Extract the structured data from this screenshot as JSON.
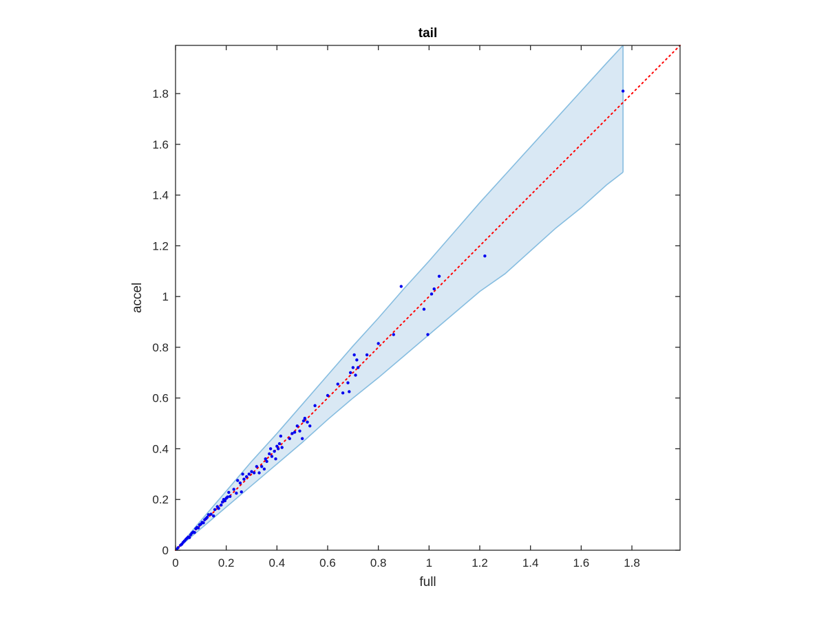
{
  "chart_data": {
    "type": "scatter",
    "title": "tail",
    "xlabel": "full",
    "ylabel": "accel",
    "xlim": [
      0,
      1.99
    ],
    "ylim": [
      0,
      1.99
    ],
    "grid": false,
    "x_ticks": [
      "0",
      "0.2",
      "0.4",
      "0.6",
      "0.8",
      "1",
      "1.2",
      "1.4",
      "1.6",
      "1.8"
    ],
    "y_ticks": [
      "0",
      "0.2",
      "0.4",
      "0.6",
      "0.8",
      "1",
      "1.2",
      "1.4",
      "1.6",
      "1.8"
    ],
    "colors": {
      "points": "#0000ee",
      "reference_line": "#ff0000",
      "band_fill": "#d9e8f4",
      "band_edge": "#86bde0",
      "axes": "#262626"
    },
    "band": {
      "x": [
        0,
        0.02,
        0.05,
        0.1,
        0.2,
        0.3,
        0.4,
        0.5,
        0.6,
        0.7,
        0.8,
        0.9,
        1.0,
        1.1,
        1.2,
        1.3,
        1.4,
        1.5,
        1.6,
        1.7,
        1.765
      ],
      "upper": [
        0,
        0.024,
        0.058,
        0.117,
        0.233,
        0.35,
        0.46,
        0.575,
        0.69,
        0.805,
        0.915,
        1.03,
        1.14,
        1.255,
        1.37,
        1.48,
        1.59,
        1.7,
        1.81,
        1.92,
        1.99
      ],
      "lower": [
        0,
        0.017,
        0.043,
        0.085,
        0.17,
        0.255,
        0.34,
        0.425,
        0.515,
        0.6,
        0.68,
        0.765,
        0.85,
        0.935,
        1.02,
        1.09,
        1.18,
        1.27,
        1.35,
        1.44,
        1.49
      ]
    },
    "reference_line": {
      "x": [
        0,
        1.99
      ],
      "y": [
        0,
        1.99
      ]
    },
    "points": [
      [
        0.005,
        0.004
      ],
      [
        0.01,
        0.01
      ],
      [
        0.02,
        0.02
      ],
      [
        0.025,
        0.024
      ],
      [
        0.03,
        0.031
      ],
      [
        0.035,
        0.036
      ],
      [
        0.04,
        0.042
      ],
      [
        0.045,
        0.047
      ],
      [
        0.05,
        0.052
      ],
      [
        0.055,
        0.05
      ],
      [
        0.06,
        0.061
      ],
      [
        0.065,
        0.068
      ],
      [
        0.07,
        0.072
      ],
      [
        0.075,
        0.07
      ],
      [
        0.08,
        0.085
      ],
      [
        0.085,
        0.09
      ],
      [
        0.09,
        0.088
      ],
      [
        0.095,
        0.1
      ],
      [
        0.1,
        0.103
      ],
      [
        0.105,
        0.11
      ],
      [
        0.11,
        0.108
      ],
      [
        0.115,
        0.12
      ],
      [
        0.12,
        0.125
      ],
      [
        0.125,
        0.13
      ],
      [
        0.13,
        0.14
      ],
      [
        0.14,
        0.142
      ],
      [
        0.15,
        0.135
      ],
      [
        0.155,
        0.16
      ],
      [
        0.165,
        0.172
      ],
      [
        0.17,
        0.165
      ],
      [
        0.18,
        0.178
      ],
      [
        0.185,
        0.19
      ],
      [
        0.19,
        0.2
      ],
      [
        0.195,
        0.195
      ],
      [
        0.2,
        0.205
      ],
      [
        0.205,
        0.21
      ],
      [
        0.21,
        0.228
      ],
      [
        0.215,
        0.212
      ],
      [
        0.23,
        0.24
      ],
      [
        0.24,
        0.225
      ],
      [
        0.245,
        0.275
      ],
      [
        0.255,
        0.265
      ],
      [
        0.26,
        0.23
      ],
      [
        0.265,
        0.3
      ],
      [
        0.27,
        0.28
      ],
      [
        0.28,
        0.29
      ],
      [
        0.29,
        0.3
      ],
      [
        0.3,
        0.31
      ],
      [
        0.31,
        0.305
      ],
      [
        0.32,
        0.33
      ],
      [
        0.33,
        0.305
      ],
      [
        0.34,
        0.33
      ],
      [
        0.35,
        0.32
      ],
      [
        0.355,
        0.36
      ],
      [
        0.36,
        0.35
      ],
      [
        0.37,
        0.38
      ],
      [
        0.375,
        0.4
      ],
      [
        0.38,
        0.37
      ],
      [
        0.39,
        0.39
      ],
      [
        0.395,
        0.36
      ],
      [
        0.4,
        0.41
      ],
      [
        0.405,
        0.4
      ],
      [
        0.41,
        0.42
      ],
      [
        0.415,
        0.45
      ],
      [
        0.42,
        0.405
      ],
      [
        0.45,
        0.44
      ],
      [
        0.46,
        0.46
      ],
      [
        0.47,
        0.465
      ],
      [
        0.48,
        0.49
      ],
      [
        0.49,
        0.47
      ],
      [
        0.5,
        0.44
      ],
      [
        0.505,
        0.51
      ],
      [
        0.51,
        0.52
      ],
      [
        0.52,
        0.505
      ],
      [
        0.53,
        0.49
      ],
      [
        0.55,
        0.57
      ],
      [
        0.6,
        0.61
      ],
      [
        0.64,
        0.655
      ],
      [
        0.66,
        0.62
      ],
      [
        0.68,
        0.66
      ],
      [
        0.685,
        0.625
      ],
      [
        0.69,
        0.7
      ],
      [
        0.7,
        0.72
      ],
      [
        0.705,
        0.77
      ],
      [
        0.71,
        0.69
      ],
      [
        0.715,
        0.75
      ],
      [
        0.72,
        0.72
      ],
      [
        0.755,
        0.77
      ],
      [
        0.8,
        0.815
      ],
      [
        0.86,
        0.85
      ],
      [
        0.89,
        1.04
      ],
      [
        0.98,
        0.95
      ],
      [
        0.995,
        0.85
      ],
      [
        1.01,
        1.01
      ],
      [
        1.02,
        1.03
      ],
      [
        1.04,
        1.08
      ],
      [
        1.22,
        1.16
      ],
      [
        1.765,
        1.81
      ]
    ]
  }
}
